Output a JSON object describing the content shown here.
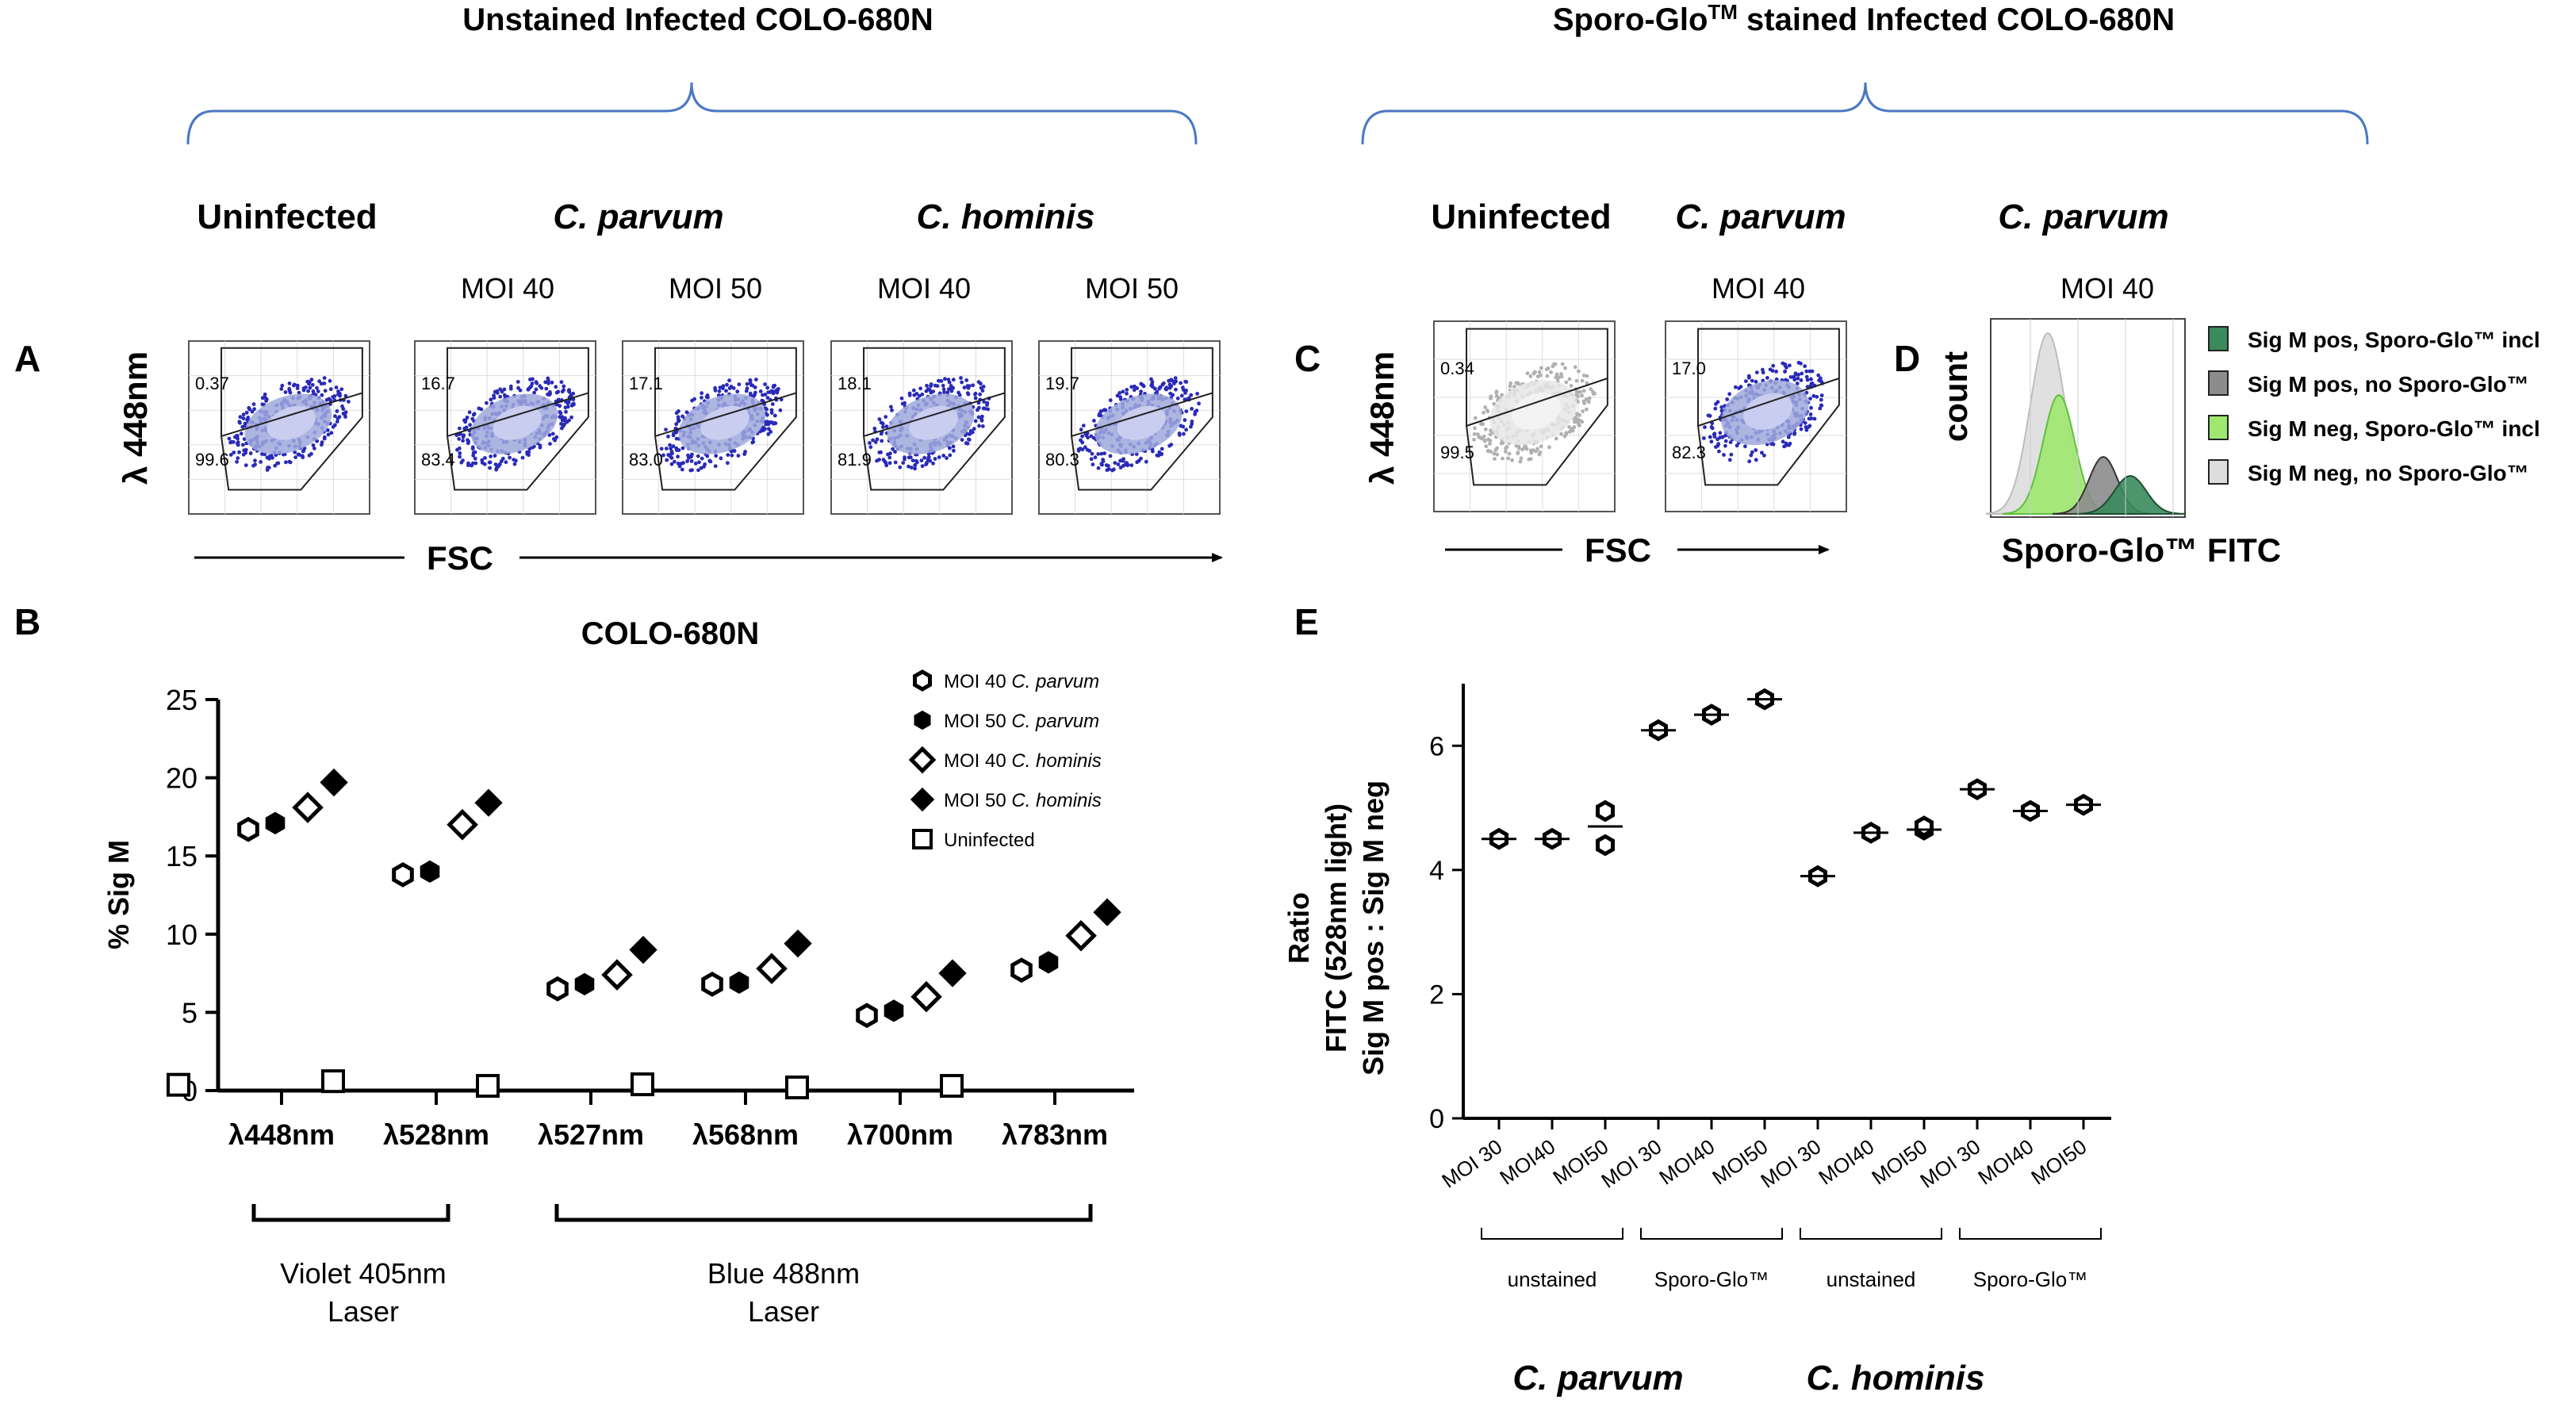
{
  "header": {
    "left_group": "Unstained Infected COLO-680N",
    "right_group_prefix": "Sporo-Glo",
    "right_group_tm": "TM",
    "right_group_suffix": " stained Infected COLO-680N"
  },
  "panel_labels": {
    "a": "A",
    "b": "B",
    "c": "C",
    "d": "D",
    "e": "E"
  },
  "panelA": {
    "uninfected": "Uninfected",
    "parvum": "C. parvum",
    "hominis": "C. hominis",
    "ylabel": "λ 448nm",
    "xlabel": "FSC",
    "plots": [
      {
        "moi": "",
        "upper": "0.37",
        "lower": "99.6"
      },
      {
        "moi": "MOI 40",
        "upper": "16.7",
        "lower": "83.4"
      },
      {
        "moi": "MOI 50",
        "upper": "17.1",
        "lower": "83.0"
      },
      {
        "moi": "MOI 40",
        "upper": "18.1",
        "lower": "81.9"
      },
      {
        "moi": "MOI 50",
        "upper": "19.7",
        "lower": "80.3"
      }
    ]
  },
  "panelC": {
    "uninfected": "Uninfected",
    "parvum": "C. parvum",
    "ylabel": "λ 448nm",
    "xlabel": "FSC",
    "plots": [
      {
        "moi": "",
        "upper": "0.34",
        "lower": "99.5"
      },
      {
        "moi": "MOI 40",
        "upper": "17.0",
        "lower": "82.3"
      }
    ]
  },
  "panelD": {
    "title": "C. parvum",
    "moi": "MOI 40",
    "ylabel": "count",
    "xlabel": "Sporo-Glo™ FITC",
    "legend": [
      {
        "label": "Sig M pos, Sporo-Glo™ incl",
        "color": "#3a8a5c"
      },
      {
        "label": "Sig M pos, no Sporo-Glo™",
        "color": "#8c8c8c"
      },
      {
        "label": "Sig M neg, Sporo-Glo™ incl",
        "color": "#9fe870"
      },
      {
        "label": "Sig M neg, no Sporo-Glo™",
        "color": "#dddddd"
      }
    ]
  },
  "panelB": {
    "title": "COLO-680N",
    "violet_laser": "Violet 405nm",
    "blue_laser": "Blue 488nm",
    "laser_word": "Laser"
  },
  "panelE": {
    "ylabel_line1": "Ratio",
    "ylabel_line2": "FITC (528nm light)",
    "ylabel_line3": "Sig M pos : Sig M neg",
    "group_labels": [
      "unstained",
      "Sporo-Glo™",
      "unstained",
      "Sporo-Glo™"
    ],
    "species_parvum": "C. parvum",
    "species_hominis": "C. hominis"
  },
  "chart_data": [
    {
      "type": "scatter",
      "title": "COLO-680N",
      "ylabel": "% Sig M",
      "xlabel": "",
      "ylim": [
        0,
        25
      ],
      "yticks": [
        0,
        5,
        10,
        15,
        20,
        25
      ],
      "categories": [
        "λ448nm",
        "λ528nm",
        "λ527nm",
        "λ568nm",
        "λ700nm",
        "λ783nm"
      ],
      "series": [
        {
          "name": "MOI 40 C. parvum",
          "marker": "open-hexagon",
          "values": [
            16.7,
            13.8,
            6.5,
            6.8,
            4.8,
            7.7
          ]
        },
        {
          "name": "MOI 50 C. parvum",
          "marker": "filled-hexagon",
          "values": [
            17.1,
            14.0,
            6.8,
            6.9,
            5.1,
            8.2
          ]
        },
        {
          "name": "MOI 40 C. hominis",
          "marker": "open-diamond",
          "values": [
            18.1,
            17.0,
            7.4,
            7.8,
            6.0,
            9.9
          ]
        },
        {
          "name": "MOI 50 C. hominis",
          "marker": "filled-diamond",
          "values": [
            19.7,
            18.4,
            9.0,
            9.4,
            7.5,
            11.4
          ]
        },
        {
          "name": "Uninfected",
          "marker": "open-square",
          "values": [
            0.37,
            0.6,
            0.3,
            0.4,
            0.2,
            0.3
          ]
        }
      ],
      "legend_position": "top-right"
    },
    {
      "type": "scatter",
      "title": "",
      "ylabel": "Ratio FITC (528nm light) Sig M pos : Sig M neg",
      "ylim": [
        0,
        7
      ],
      "yticks": [
        0,
        2,
        4,
        6
      ],
      "categories": [
        "MOI 30",
        "MOI40",
        "MOI50",
        "MOI 30",
        "MOI40",
        "MOI50",
        "MOI 30",
        "MOI40",
        "MOI50",
        "MOI 30",
        "MOI40",
        "MOI50"
      ],
      "groups": [
        {
          "label": "unstained",
          "species": "C. parvum",
          "points": [
            [
              4.5
            ],
            [
              4.5
            ],
            [
              4.95,
              4.4
            ]
          ],
          "means": [
            4.5,
            4.5,
            4.7
          ]
        },
        {
          "label": "Sporo-Glo™",
          "species": "C. parvum",
          "points": [
            [
              6.25
            ],
            [
              6.5
            ],
            [
              6.75
            ]
          ],
          "means": [
            6.25,
            6.5,
            6.75
          ]
        },
        {
          "label": "unstained",
          "species": "C. hominis",
          "points": [
            [
              3.9
            ],
            [
              4.6
            ],
            [
              4.65,
              4.7
            ]
          ],
          "means": [
            3.9,
            4.6,
            4.65
          ]
        },
        {
          "label": "Sporo-Glo™",
          "species": "C. hominis",
          "points": [
            [
              5.3
            ],
            [
              4.95
            ],
            [
              5.05
            ]
          ],
          "means": [
            5.3,
            4.95,
            5.05
          ]
        }
      ]
    }
  ]
}
